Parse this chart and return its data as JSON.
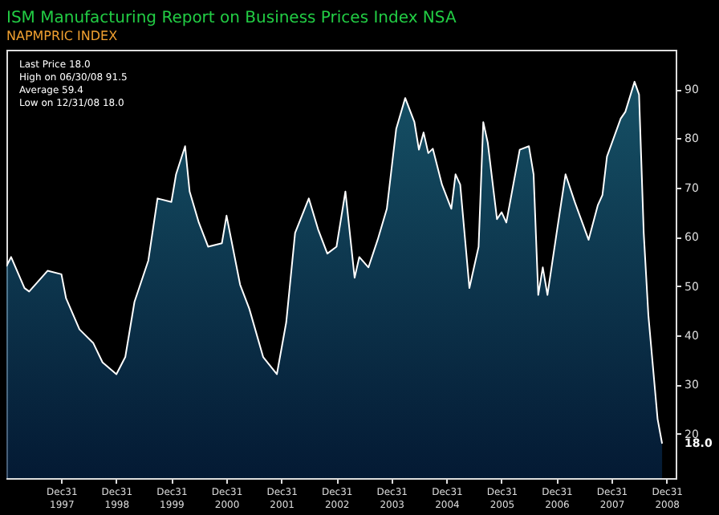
{
  "chart_data": {
    "type": "area",
    "title": "ISM Manufacturing Report on Business Prices Index NSA",
    "subtitle": "NAPMPRIC INDEX",
    "x": [
      "1997-01",
      "1997-02",
      "1997-05",
      "1997-06",
      "1997-10",
      "1998-01",
      "1998-02",
      "1998-05",
      "1998-08",
      "1998-10",
      "1999-01",
      "1999-03",
      "1999-05",
      "1999-08",
      "1999-10",
      "2000-01",
      "2000-02",
      "2000-04",
      "2000-05",
      "2000-07",
      "2000-09",
      "2000-12",
      "2001-01",
      "2001-04",
      "2001-06",
      "2001-09",
      "2001-12",
      "2002-02",
      "2002-04",
      "2002-07",
      "2002-09",
      "2002-11",
      "2003-01",
      "2003-03",
      "2003-05",
      "2003-06",
      "2003-08",
      "2003-10",
      "2003-12",
      "2004-02",
      "2004-04",
      "2004-06",
      "2004-07",
      "2004-08",
      "2004-09",
      "2004-10",
      "2004-12",
      "2005-02",
      "2005-03",
      "2005-04",
      "2005-06",
      "2005-08",
      "2005-09",
      "2005-10",
      "2005-12",
      "2006-01",
      "2006-02",
      "2006-05",
      "2006-07",
      "2006-08",
      "2006-09",
      "2006-10",
      "2006-11",
      "2007-01",
      "2007-03",
      "2007-05",
      "2007-08",
      "2007-10",
      "2007-11",
      "2007-12",
      "2008-03",
      "2008-04",
      "2008-06",
      "2008-07",
      "2008-08",
      "2008-09",
      "2008-11",
      "2008-12"
    ],
    "series": [
      {
        "color": "#1f7391",
        "values": [
          54.0,
          55.9,
          49.6,
          48.9,
          53.1,
          52.4,
          47.5,
          41.2,
          38.4,
          34.5,
          32.1,
          35.6,
          46.8,
          55.2,
          67.8,
          67.1,
          72.7,
          78.4,
          69.2,
          62.9,
          58.0,
          58.7,
          64.3,
          50.3,
          45.4,
          35.6,
          32.1,
          42.6,
          60.8,
          67.8,
          61.5,
          56.6,
          58.0,
          69.2,
          51.7,
          55.9,
          53.8,
          59.4,
          65.7,
          81.9,
          88.2,
          83.3,
          77.7,
          81.2,
          77.0,
          77.9,
          70.6,
          65.7,
          72.7,
          70.6,
          49.6,
          58.0,
          83.3,
          79.1,
          63.6,
          65.0,
          62.9,
          77.7,
          78.4,
          72.7,
          48.2,
          53.8,
          48.2,
          60.8,
          72.7,
          67.1,
          59.4,
          66.4,
          68.5,
          76.3,
          84.0,
          85.4,
          91.5,
          88.9,
          60.8,
          44.0,
          23.0,
          18.0
        ]
      }
    ],
    "xlim": [
      "1997-01-01",
      "2009-03-01"
    ],
    "xticks": [
      {
        "value": "1997-12-31",
        "label": "Dec31\n1997"
      },
      {
        "value": "1998-12-31",
        "label": "Dec31\n1998"
      },
      {
        "value": "1999-12-31",
        "label": "Dec31\n1999"
      },
      {
        "value": "2000-12-31",
        "label": "Dec31\n2000"
      },
      {
        "value": "2001-12-31",
        "label": "Dec31\n2001"
      },
      {
        "value": "2002-12-31",
        "label": "Dec31\n2002"
      },
      {
        "value": "2003-12-31",
        "label": "Dec31\n2003"
      },
      {
        "value": "2004-12-31",
        "label": "Dec31\n2004"
      },
      {
        "value": "2005-12-31",
        "label": "Dec31\n2005"
      },
      {
        "value": "2006-12-31",
        "label": "Dec31\n2006"
      },
      {
        "value": "2007-12-31",
        "label": "Dec31\n2007"
      },
      {
        "value": "2008-12-31",
        "label": "Dec31\n2008"
      }
    ],
    "ylim": [
      11,
      98
    ],
    "yticks": [
      20,
      30,
      40,
      50,
      60,
      70,
      80,
      90
    ],
    "grid": false,
    "annotations": [
      "Last Price 18.0",
      "High on 06/30/08 91.5",
      "Average 59.4",
      "Low on 12/31/08 18.0",
      {
        "text": "18.0",
        "x": "2008-12",
        "y": 18
      }
    ]
  }
}
